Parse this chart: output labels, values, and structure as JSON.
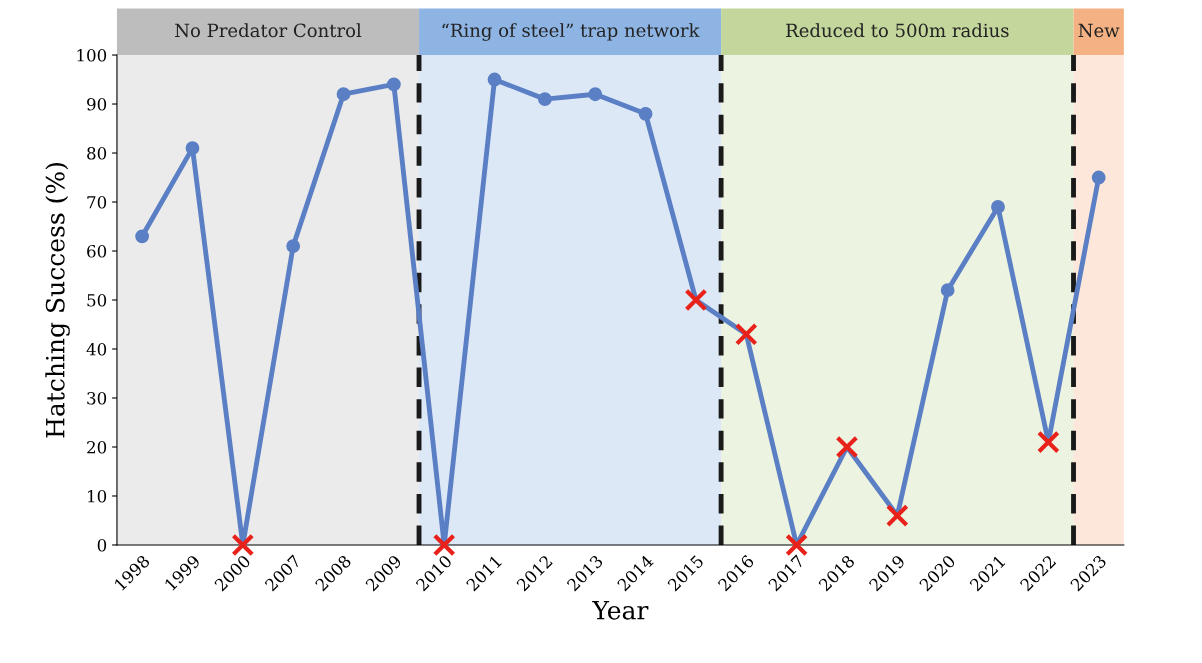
{
  "chart_data": {
    "type": "line",
    "xlabel": "Year",
    "ylabel": "Hatching Success (%)",
    "categories": [
      "1998",
      "1999",
      "2000",
      "2007",
      "2008",
      "2009",
      "2010",
      "2011",
      "2012",
      "2013",
      "2014",
      "2015",
      "2016",
      "2017",
      "2018",
      "2019",
      "2020",
      "2021",
      "2022",
      "2023"
    ],
    "series": [
      {
        "color": "#5b7fc4",
        "marker": "none",
        "values": [
          63,
          81,
          0,
          61,
          92,
          94,
          0,
          95,
          91,
          92,
          88,
          50,
          43,
          0,
          20,
          6,
          52,
          69,
          21,
          75
        ]
      },
      {
        "type": "scatter",
        "color": "#5b7fc4",
        "marker": "circle",
        "values": [
          63,
          81,
          null,
          61,
          92,
          94,
          null,
          95,
          91,
          92,
          88,
          null,
          null,
          null,
          null,
          null,
          52,
          69,
          null,
          75
        ]
      },
      {
        "type": "scatter",
        "color": "#e8221b",
        "marker": "cross",
        "values": [
          null,
          null,
          0,
          null,
          null,
          null,
          0,
          null,
          null,
          null,
          null,
          50,
          43,
          0,
          20,
          6,
          null,
          null,
          21,
          null
        ]
      }
    ],
    "ylim": [
      0,
      100
    ],
    "yticks": [
      0,
      10,
      20,
      30,
      40,
      50,
      60,
      70,
      80,
      90,
      100
    ],
    "grid": false,
    "bands": [
      {
        "axis": "x",
        "from": "1998",
        "to": "2009",
        "label": "No Predator Control",
        "color": "#bdbdbd"
      },
      {
        "axis": "x",
        "from": "2010",
        "to": "2015",
        "label": "“Ring of steel” trap network",
        "color": "#8eb4e3"
      },
      {
        "axis": "x",
        "from": "2016",
        "to": "2022",
        "label": "Reduced to 500m radius",
        "color": "#c3d69b"
      },
      {
        "axis": "x",
        "from": "2023",
        "to": "2023",
        "label": "New",
        "color": "#f4b183"
      }
    ]
  }
}
